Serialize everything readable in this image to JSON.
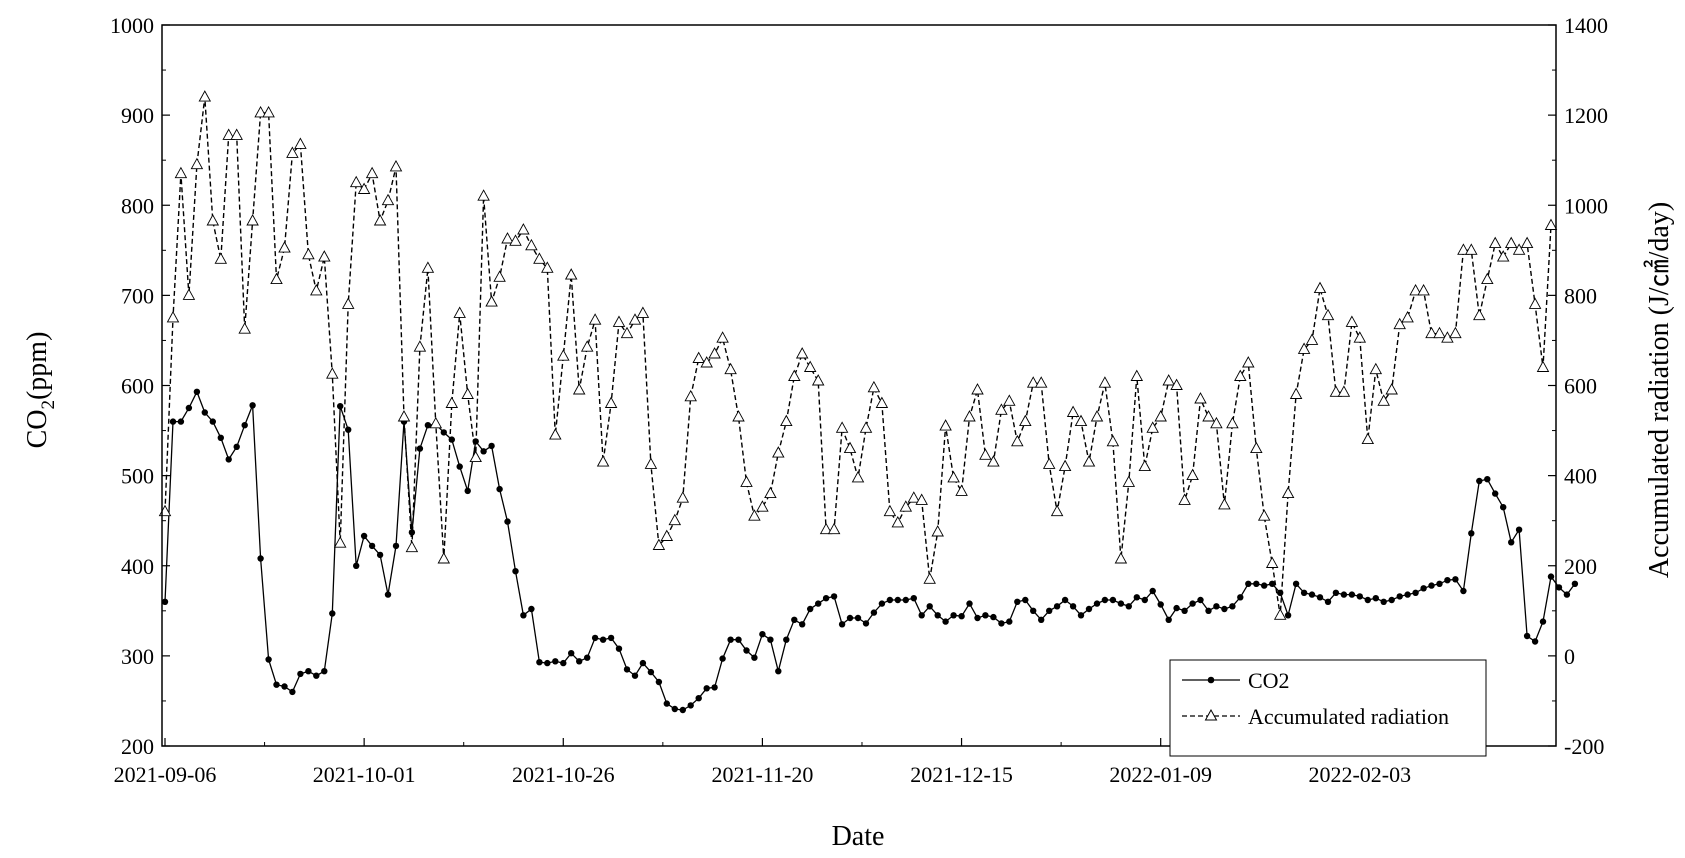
{
  "chart_data": {
    "type": "line",
    "title": "",
    "xlabel": "Date",
    "ylabel": "CO",
    "ylabel_sub": "2",
    "ylabel_unit": "(ppm)",
    "y2label": "Accumulated radiation (J/㎠/day)",
    "ylim": [
      200,
      1000
    ],
    "y2lim": [
      -200,
      1400
    ],
    "y_ticks": [
      200,
      300,
      400,
      500,
      600,
      700,
      800,
      900,
      1000
    ],
    "y2_ticks": [
      -200,
      0,
      200,
      400,
      600,
      800,
      1000,
      1200,
      1400
    ],
    "x_start": "2021-09-06",
    "x_num_days": 175,
    "x_tick_days": [
      0,
      25,
      50,
      75,
      100,
      125,
      150
    ],
    "x_tick_labels": [
      "2021-09-06",
      "2021-10-01",
      "2021-10-26",
      "2021-11-20",
      "2021-12-15",
      "2022-01-09",
      "2022-02-03"
    ],
    "legend": {
      "position": "bottom-right",
      "entries": [
        "CO2",
        "Accumulated radiation"
      ]
    },
    "series": [
      {
        "name": "CO2",
        "axis": "left",
        "marker": "filled-circle",
        "line_style": "solid",
        "start_day": 0,
        "values": [
          360,
          560,
          560,
          575,
          593,
          570,
          560,
          542,
          518,
          532,
          556,
          578,
          408,
          296,
          268,
          266,
          260,
          280,
          283,
          278,
          283,
          347,
          577,
          551,
          400,
          433,
          422,
          412,
          368,
          422,
          560,
          437,
          530,
          556,
          557,
          548,
          540,
          510,
          483,
          538,
          527,
          533,
          485,
          449,
          394,
          345,
          352,
          293,
          292,
          294,
          292,
          303,
          294,
          298,
          320,
          318,
          320,
          308,
          285,
          278,
          292,
          282,
          271,
          247,
          241,
          240,
          245,
          253,
          264,
          265,
          297,
          318,
          318,
          306,
          298,
          324,
          318,
          283,
          318,
          340,
          335,
          352,
          358,
          364,
          366,
          335,
          342,
          342,
          336,
          348,
          358,
          362,
          362,
          362,
          364,
          345,
          355,
          345,
          338,
          345,
          344,
          358,
          342,
          345,
          343,
          336,
          338,
          360,
          362,
          350,
          340,
          350,
          355,
          362,
          355,
          345,
          352,
          358,
          362,
          362,
          358,
          355,
          365,
          362,
          372,
          357,
          340,
          353,
          350,
          358,
          362,
          350,
          355,
          352,
          355,
          365,
          380,
          380,
          378,
          380,
          370,
          345,
          380,
          370,
          368,
          365,
          360,
          370,
          368,
          368,
          366,
          362,
          364,
          360,
          362,
          366,
          368,
          370,
          375,
          378,
          380,
          384,
          385,
          372,
          436,
          494,
          496,
          480,
          465,
          426,
          440,
          322,
          316,
          338,
          388,
          376,
          368,
          380
        ]
      },
      {
        "name": "Accumulated radiation",
        "axis": "right",
        "marker": "open-triangle",
        "line_style": "dashed",
        "start_day": 0,
        "values": [
          320,
          750,
          1070,
          800,
          1090,
          1240,
          965,
          880,
          1155,
          1155,
          725,
          965,
          1205,
          1205,
          835,
          905,
          1115,
          1135,
          890,
          810,
          885,
          625,
          250,
          780,
          1050,
          1035,
          1070,
          965,
          1010,
          1085,
          530,
          240,
          685,
          860,
          515,
          215,
          560,
          760,
          580,
          440,
          1020,
          785,
          840,
          925,
          920,
          945,
          910,
          880,
          860,
          490,
          665,
          845,
          590,
          685,
          745,
          430,
          560,
          740,
          715,
          745,
          760,
          425,
          245,
          265,
          300,
          350,
          575,
          660,
          650,
          670,
          705,
          635,
          530,
          385,
          310,
          330,
          360,
          450,
          520,
          620,
          670,
          640,
          610,
          280,
          280,
          505,
          460,
          395,
          505,
          595,
          560,
          320,
          295,
          330,
          350,
          345,
          170,
          275,
          510,
          395,
          365,
          530,
          590,
          445,
          430,
          545,
          565,
          475,
          520,
          605,
          605,
          425,
          320,
          420,
          540,
          520,
          430,
          530,
          605,
          475,
          215,
          385,
          620,
          420,
          505,
          530,
          610,
          600,
          345,
          400,
          570,
          530,
          515,
          335,
          515,
          620,
          650,
          460,
          310,
          205,
          90,
          360,
          580,
          680,
          700,
          815,
          755,
          585,
          585,
          740,
          705,
          480,
          635,
          565,
          590,
          735,
          750,
          810,
          810,
          715,
          715,
          705,
          715,
          900,
          900,
          755,
          835,
          915,
          885,
          915,
          900,
          915,
          780,
          640,
          955
        ]
      }
    ]
  }
}
